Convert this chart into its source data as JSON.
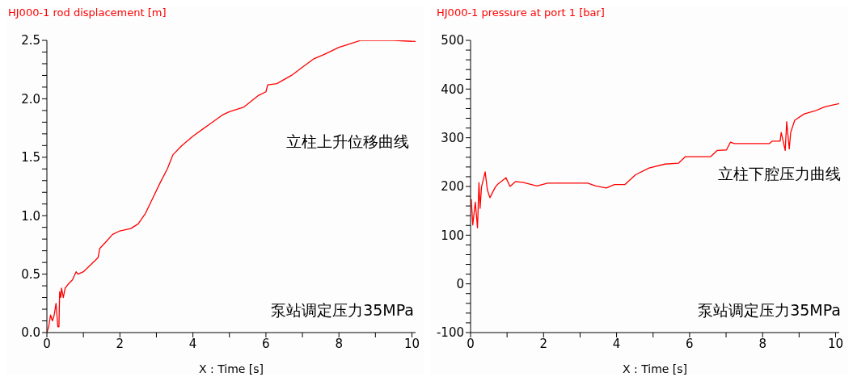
{
  "chart_data": [
    {
      "type": "line",
      "ylabel": "HJ000-1 rod displacement [m]",
      "xlabel": "X : Time [s]",
      "annotations": [
        "立柱上升位移曲线",
        "泵站调定压力35MPa"
      ],
      "xlim": [
        0,
        10.1
      ],
      "xticks": [
        0,
        {
          "value": 1,
          "label": null
        },
        2,
        {
          "value": 3,
          "label": null
        },
        4,
        {
          "value": 5,
          "label": null
        },
        6,
        {
          "value": 7,
          "label": null
        },
        8,
        {
          "value": 9,
          "label": null
        },
        10
      ],
      "ylim": [
        0,
        2.5
      ],
      "yticks": [
        {
          "value": 0,
          "label": "0.0"
        },
        {
          "value": 0.1,
          "label": null
        },
        {
          "value": 0.2,
          "label": null
        },
        {
          "value": 0.3,
          "label": null
        },
        {
          "value": 0.4,
          "label": null
        },
        0.5,
        {
          "value": 0.6,
          "label": null
        },
        {
          "value": 0.7,
          "label": null
        },
        {
          "value": 0.8,
          "label": null
        },
        {
          "value": 0.9,
          "label": null
        },
        {
          "value": 1,
          "label": "1.0"
        },
        {
          "value": 1.1,
          "label": null
        },
        {
          "value": 1.2,
          "label": null
        },
        {
          "value": 1.3,
          "label": null
        },
        {
          "value": 1.4,
          "label": null
        },
        1.5,
        {
          "value": 1.6,
          "label": null
        },
        {
          "value": 1.7,
          "label": null
        },
        {
          "value": 1.8,
          "label": null
        },
        {
          "value": 1.9,
          "label": null
        },
        {
          "value": 2,
          "label": "2.0"
        },
        {
          "value": 2.1,
          "label": null
        },
        {
          "value": 2.2,
          "label": null
        },
        {
          "value": 2.3,
          "label": null
        },
        {
          "value": 2.4,
          "label": null
        },
        2.5
      ],
      "series": [
        {
          "color": "#ff0000",
          "x": [
            0,
            0.05,
            0.1,
            0.15,
            0.2,
            0.25,
            0.3,
            0.33,
            0.35,
            0.38,
            0.4,
            0.45,
            0.5,
            0.6,
            0.7,
            0.8,
            0.85,
            1.0,
            1.2,
            1.4,
            1.45,
            1.6,
            1.8,
            2.0,
            2.3,
            2.5,
            2.7,
            2.9,
            3.1,
            3.3,
            3.45,
            3.7,
            4.0,
            4.4,
            4.8,
            5.0,
            5.4,
            5.8,
            6.0,
            6.05,
            6.3,
            6.7,
            7.0,
            7.3,
            7.6,
            8.0,
            8.3,
            8.6,
            9.5,
            10.1
          ],
          "values": [
            0,
            0.05,
            0.15,
            0.1,
            0.15,
            0.25,
            0.05,
            0.05,
            0.35,
            0.3,
            0.38,
            0.3,
            0.38,
            0.42,
            0.45,
            0.52,
            0.5,
            0.52,
            0.58,
            0.64,
            0.72,
            0.77,
            0.84,
            0.87,
            0.89,
            0.93,
            1.02,
            1.15,
            1.28,
            1.4,
            1.52,
            1.6,
            1.68,
            1.77,
            1.86,
            1.89,
            1.93,
            2.03,
            2.06,
            2.12,
            2.13,
            2.2,
            2.27,
            2.34,
            2.38,
            2.44,
            2.47,
            2.5,
            2.5,
            2.49
          ]
        }
      ]
    },
    {
      "type": "line",
      "ylabel": "HJ000-1 pressure at port 1 [bar]",
      "xlabel": "X : Time [s]",
      "annotations": [
        "立柱下腔压力曲线",
        "泵站调定压力35MPa"
      ],
      "xlim": [
        0,
        10.1
      ],
      "xticks": [
        0,
        {
          "value": 1,
          "label": null
        },
        2,
        {
          "value": 3,
          "label": null
        },
        4,
        {
          "value": 5,
          "label": null
        },
        6,
        {
          "value": 7,
          "label": null
        },
        8,
        {
          "value": 9,
          "label": null
        },
        10
      ],
      "ylim": [
        -100,
        500
      ],
      "yticks": [
        -100,
        {
          "value": -80,
          "label": null
        },
        {
          "value": -60,
          "label": null
        },
        {
          "value": -40,
          "label": null
        },
        {
          "value": -20,
          "label": null
        },
        0,
        {
          "value": 20,
          "label": null
        },
        {
          "value": 40,
          "label": null
        },
        {
          "value": 60,
          "label": null
        },
        {
          "value": 80,
          "label": null
        },
        100,
        {
          "value": 120,
          "label": null
        },
        {
          "value": 140,
          "label": null
        },
        {
          "value": 160,
          "label": null
        },
        {
          "value": 180,
          "label": null
        },
        200,
        {
          "value": 220,
          "label": null
        },
        {
          "value": 240,
          "label": null
        },
        {
          "value": 260,
          "label": null
        },
        {
          "value": 280,
          "label": null
        },
        300,
        {
          "value": 320,
          "label": null
        },
        {
          "value": 340,
          "label": null
        },
        {
          "value": 360,
          "label": null
        },
        {
          "value": 380,
          "label": null
        },
        400,
        {
          "value": 420,
          "label": null
        },
        {
          "value": 440,
          "label": null
        },
        {
          "value": 460,
          "label": null
        },
        {
          "value": 480,
          "label": null
        },
        500
      ],
      "series": [
        {
          "color": "#ff0000",
          "x": [
            0.02,
            0.06,
            0.13,
            0.19,
            0.23,
            0.26,
            0.3,
            0.4,
            0.46,
            0.53,
            0.68,
            0.75,
            0.97,
            1.08,
            1.23,
            1.45,
            1.82,
            2.11,
            3.21,
            3.43,
            3.72,
            3.94,
            4.23,
            4.52,
            4.89,
            5.33,
            5.7,
            5.88,
            6.57,
            6.76,
            7.01,
            7.12,
            7.23,
            8.18,
            8.26,
            8.48,
            8.51,
            8.62,
            8.66,
            8.73,
            8.77,
            8.88,
            9.14,
            9.43,
            9.72,
            10.1
          ],
          "values": [
            174,
            121,
            168,
            115,
            208,
            155,
            199,
            230,
            193,
            177,
            199,
            205,
            218,
            200,
            210,
            208,
            201,
            207,
            207,
            201,
            197,
            204,
            204,
            224,
            238,
            246,
            248,
            261,
            261,
            274,
            275,
            291,
            288,
            288,
            293,
            293,
            311,
            274,
            333,
            277,
            311,
            336,
            349,
            355,
            364,
            370
          ]
        }
      ]
    }
  ]
}
